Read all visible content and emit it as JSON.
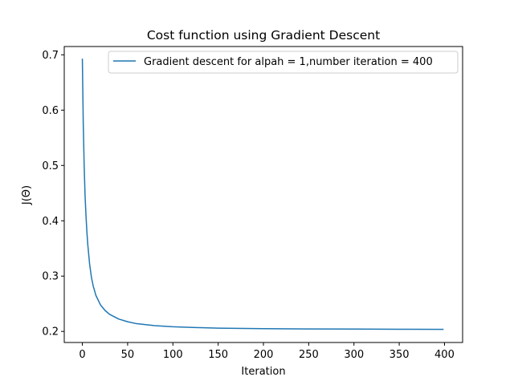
{
  "chart_data": {
    "type": "line",
    "title": "Cost function using Gradient Descent",
    "xlabel": "Iteration",
    "ylabel": "J(Θ)",
    "xlim": [
      -20,
      420
    ],
    "ylim": [
      0.18,
      0.715
    ],
    "x_ticks": [
      0,
      50,
      100,
      150,
      200,
      250,
      300,
      350,
      400
    ],
    "y_ticks": [
      0.2,
      0.3,
      0.4,
      0.5,
      0.6,
      0.7
    ],
    "y_tick_labels": [
      "0.2",
      "0.3",
      "0.4",
      "0.5",
      "0.6",
      "0.7"
    ],
    "grid": false,
    "legend_position": "upper-right",
    "series": [
      {
        "name": "Gradient descent for alpah = 1,number iteration = 400",
        "color": "#1f77b4",
        "x": [
          0,
          1,
          2,
          3,
          4,
          5,
          6,
          8,
          10,
          12,
          15,
          20,
          25,
          30,
          40,
          50,
          60,
          80,
          100,
          125,
          150,
          200,
          250,
          300,
          350,
          399
        ],
        "y": [
          0.693,
          0.575,
          0.5,
          0.445,
          0.41,
          0.38,
          0.357,
          0.322,
          0.298,
          0.282,
          0.265,
          0.248,
          0.238,
          0.231,
          0.2225,
          0.2175,
          0.214,
          0.2105,
          0.2085,
          0.207,
          0.206,
          0.205,
          0.2045,
          0.2042,
          0.204,
          0.2038
        ]
      }
    ]
  }
}
